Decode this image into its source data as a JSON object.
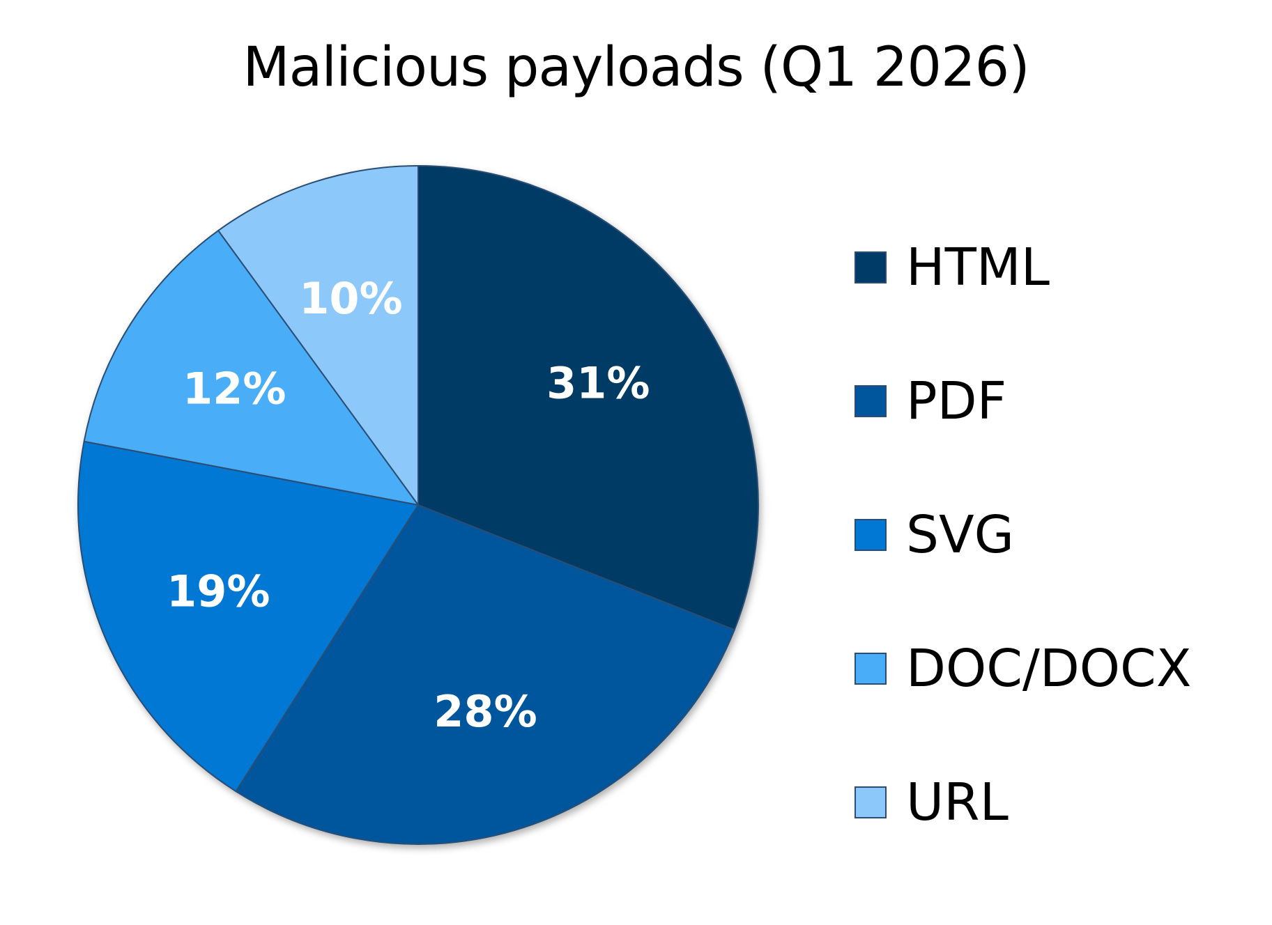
{
  "chart_data": {
    "type": "pie",
    "title": "Malicious payloads (Q1 2026)",
    "start_angle_deg": 0,
    "direction": "clockwise",
    "legend_position": "right",
    "slices": [
      {
        "label": "HTML",
        "value": 31,
        "display": "31%",
        "color": "#003a66"
      },
      {
        "label": "PDF",
        "value": 28,
        "display": "28%",
        "color": "#00569c"
      },
      {
        "label": "SVG",
        "value": 19,
        "display": "19%",
        "color": "#0078d4"
      },
      {
        "label": "DOC/DOCX",
        "value": 12,
        "display": "12%",
        "color": "#4aadf7"
      },
      {
        "label": "URL",
        "value": 10,
        "display": "10%",
        "color": "#8dc8fb"
      }
    ]
  }
}
